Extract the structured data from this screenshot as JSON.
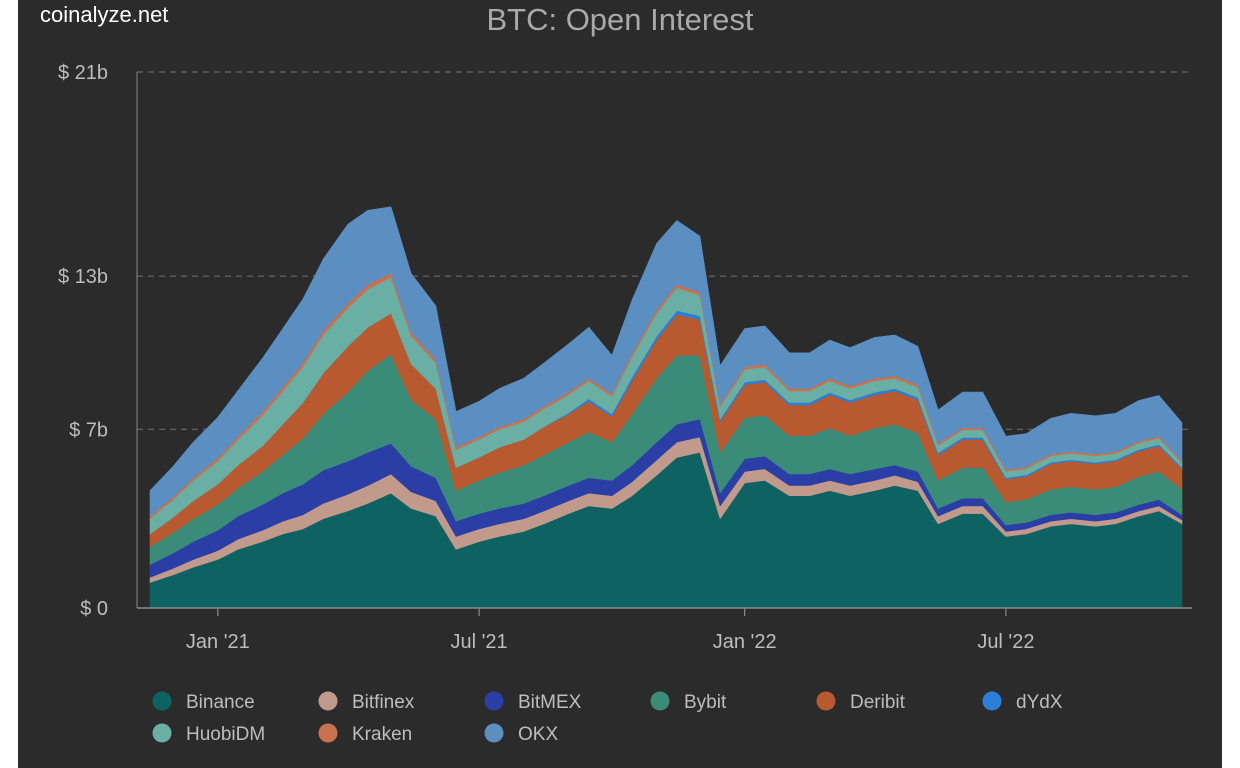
{
  "watermark": "coinalyze.net",
  "chart_data": {
    "type": "area",
    "stacked": true,
    "title": "BTC: Open Interest",
    "ylim": [
      0,
      21
    ],
    "y_ticks": [
      {
        "value": 0,
        "label": "$ 0"
      },
      {
        "value": 7,
        "label": "$ 7b"
      },
      {
        "value": 13,
        "label": "$ 13b"
      },
      {
        "value": 21,
        "label": "$ 21b"
      }
    ],
    "x_ticks": [
      "Jan '21",
      "Jul '21",
      "Jan '22",
      "Jul '22"
    ],
    "x_tick_dates": [
      "2021-01-01",
      "2021-07-01",
      "2022-01-01",
      "2022-07-01"
    ],
    "x_range": [
      "2020-11-15",
      "2022-10-31"
    ],
    "grid": "horizontal dashed",
    "legend_position": "bottom",
    "x": [
      "2020-11-15",
      "2020-12-01",
      "2020-12-15",
      "2021-01-01",
      "2021-01-15",
      "2021-02-01",
      "2021-02-15",
      "2021-03-01",
      "2021-03-15",
      "2021-04-01",
      "2021-04-15",
      "2021-05-01",
      "2021-05-15",
      "2021-06-01",
      "2021-06-15",
      "2021-07-01",
      "2021-07-15",
      "2021-08-01",
      "2021-08-15",
      "2021-09-01",
      "2021-09-15",
      "2021-10-01",
      "2021-10-15",
      "2021-11-01",
      "2021-11-15",
      "2021-12-01",
      "2021-12-15",
      "2022-01-01",
      "2022-01-15",
      "2022-02-01",
      "2022-02-15",
      "2022-03-01",
      "2022-03-15",
      "2022-04-01",
      "2022-04-15",
      "2022-05-01",
      "2022-05-15",
      "2022-06-01",
      "2022-06-15",
      "2022-07-01",
      "2022-07-15",
      "2022-08-01",
      "2022-08-15",
      "2022-09-01",
      "2022-09-15",
      "2022-10-01",
      "2022-10-15",
      "2022-10-31"
    ],
    "series": [
      {
        "name": "Binance",
        "color": "#0f6262",
        "values": [
          1.0,
          1.3,
          1.6,
          1.9,
          2.3,
          2.6,
          2.9,
          3.1,
          3.5,
          3.8,
          4.1,
          4.5,
          3.9,
          3.6,
          2.3,
          2.6,
          2.8,
          3.0,
          3.3,
          3.7,
          4.0,
          3.9,
          4.4,
          5.2,
          5.9,
          6.1,
          3.5,
          4.9,
          5.0,
          4.4,
          4.4,
          4.6,
          4.4,
          4.6,
          4.8,
          4.6,
          3.3,
          3.7,
          3.7,
          2.8,
          2.9,
          3.2,
          3.3,
          3.2,
          3.3,
          3.6,
          3.8,
          3.3
        ]
      },
      {
        "name": "Bitfinex",
        "color": "#c29a8c",
        "values": [
          0.2,
          0.25,
          0.3,
          0.35,
          0.4,
          0.45,
          0.5,
          0.55,
          0.6,
          0.65,
          0.7,
          0.75,
          0.65,
          0.6,
          0.5,
          0.5,
          0.5,
          0.5,
          0.5,
          0.5,
          0.5,
          0.5,
          0.55,
          0.6,
          0.6,
          0.6,
          0.5,
          0.45,
          0.45,
          0.4,
          0.4,
          0.4,
          0.4,
          0.4,
          0.4,
          0.35,
          0.3,
          0.3,
          0.3,
          0.2,
          0.2,
          0.2,
          0.2,
          0.2,
          0.2,
          0.2,
          0.2,
          0.15
        ]
      },
      {
        "name": "BitMEX",
        "color": "#2a3ea6",
        "values": [
          0.5,
          0.6,
          0.7,
          0.8,
          0.9,
          1.0,
          1.1,
          1.2,
          1.3,
          1.3,
          1.3,
          1.2,
          1.0,
          0.9,
          0.6,
          0.6,
          0.6,
          0.6,
          0.6,
          0.6,
          0.6,
          0.6,
          0.65,
          0.7,
          0.7,
          0.7,
          0.5,
          0.5,
          0.5,
          0.45,
          0.45,
          0.45,
          0.45,
          0.45,
          0.4,
          0.4,
          0.3,
          0.3,
          0.3,
          0.25,
          0.25,
          0.25,
          0.25,
          0.25,
          0.25,
          0.25,
          0.25,
          0.2
        ]
      },
      {
        "name": "Bybit",
        "color": "#3a8c78",
        "values": [
          0.7,
          0.8,
          0.9,
          1.0,
          1.1,
          1.3,
          1.5,
          1.8,
          2.2,
          2.7,
          3.2,
          3.5,
          2.6,
          2.3,
          1.2,
          1.3,
          1.4,
          1.5,
          1.6,
          1.7,
          1.8,
          1.5,
          2.0,
          2.5,
          2.7,
          2.5,
          1.6,
          1.6,
          1.6,
          1.5,
          1.5,
          1.6,
          1.5,
          1.6,
          1.6,
          1.5,
          1.1,
          1.2,
          1.2,
          0.9,
          0.9,
          1.0,
          1.0,
          1.0,
          1.0,
          1.1,
          1.1,
          1.0
        ]
      },
      {
        "name": "Deribit",
        "color": "#b8592f",
        "values": [
          0.5,
          0.6,
          0.7,
          0.8,
          0.9,
          1.0,
          1.2,
          1.4,
          1.6,
          1.8,
          1.7,
          1.6,
          1.4,
          1.2,
          0.9,
          0.9,
          1.0,
          1.0,
          1.1,
          1.1,
          1.2,
          1.0,
          1.3,
          1.5,
          1.6,
          1.4,
          1.2,
          1.3,
          1.3,
          1.2,
          1.2,
          1.3,
          1.3,
          1.3,
          1.3,
          1.3,
          1.0,
          1.1,
          1.1,
          0.9,
          0.9,
          1.0,
          1.0,
          1.0,
          1.0,
          1.0,
          1.0,
          0.8
        ]
      },
      {
        "name": "dYdX",
        "color": "#2b7fd6",
        "values": [
          0,
          0,
          0,
          0,
          0,
          0,
          0,
          0,
          0,
          0,
          0,
          0,
          0,
          0,
          0,
          0,
          0,
          0,
          0,
          0.05,
          0.1,
          0.1,
          0.15,
          0.15,
          0.15,
          0.15,
          0.1,
          0.1,
          0.1,
          0.1,
          0.1,
          0.1,
          0.1,
          0.1,
          0.1,
          0.1,
          0.08,
          0.08,
          0.08,
          0.06,
          0.06,
          0.06,
          0.06,
          0.06,
          0.06,
          0.06,
          0.06,
          0.05
        ]
      },
      {
        "name": "HuobiDM",
        "color": "#6aafa3",
        "values": [
          0.6,
          0.7,
          0.8,
          0.9,
          1.0,
          1.2,
          1.3,
          1.4,
          1.5,
          1.5,
          1.5,
          1.4,
          1.1,
          1.0,
          0.7,
          0.7,
          0.7,
          0.7,
          0.7,
          0.7,
          0.7,
          0.7,
          0.8,
          0.9,
          0.9,
          0.8,
          0.5,
          0.5,
          0.5,
          0.45,
          0.45,
          0.45,
          0.45,
          0.45,
          0.4,
          0.4,
          0.3,
          0.3,
          0.3,
          0.25,
          0.25,
          0.25,
          0.25,
          0.25,
          0.25,
          0.25,
          0.25,
          0.2
        ]
      },
      {
        "name": "Kraken",
        "color": "#c9714f",
        "values": [
          0.1,
          0.1,
          0.1,
          0.12,
          0.12,
          0.14,
          0.15,
          0.16,
          0.17,
          0.18,
          0.18,
          0.17,
          0.15,
          0.14,
          0.1,
          0.1,
          0.1,
          0.1,
          0.1,
          0.1,
          0.1,
          0.1,
          0.12,
          0.13,
          0.13,
          0.12,
          0.1,
          0.1,
          0.1,
          0.1,
          0.1,
          0.1,
          0.1,
          0.1,
          0.1,
          0.1,
          0.08,
          0.08,
          0.08,
          0.07,
          0.07,
          0.07,
          0.07,
          0.07,
          0.07,
          0.07,
          0.07,
          0.06
        ]
      },
      {
        "name": "OKX",
        "color": "#5b8fc2",
        "values": [
          1.0,
          1.2,
          1.4,
          1.6,
          1.8,
          2.1,
          2.3,
          2.5,
          2.8,
          3.1,
          2.9,
          2.6,
          2.3,
          2.1,
          1.4,
          1.4,
          1.5,
          1.6,
          1.7,
          1.9,
          2.0,
          1.5,
          2.1,
          2.6,
          2.5,
          2.2,
          1.5,
          1.5,
          1.5,
          1.4,
          1.4,
          1.5,
          1.5,
          1.6,
          1.6,
          1.5,
          1.3,
          1.4,
          1.4,
          1.3,
          1.3,
          1.4,
          1.5,
          1.5,
          1.5,
          1.6,
          1.6,
          1.5
        ]
      }
    ]
  }
}
